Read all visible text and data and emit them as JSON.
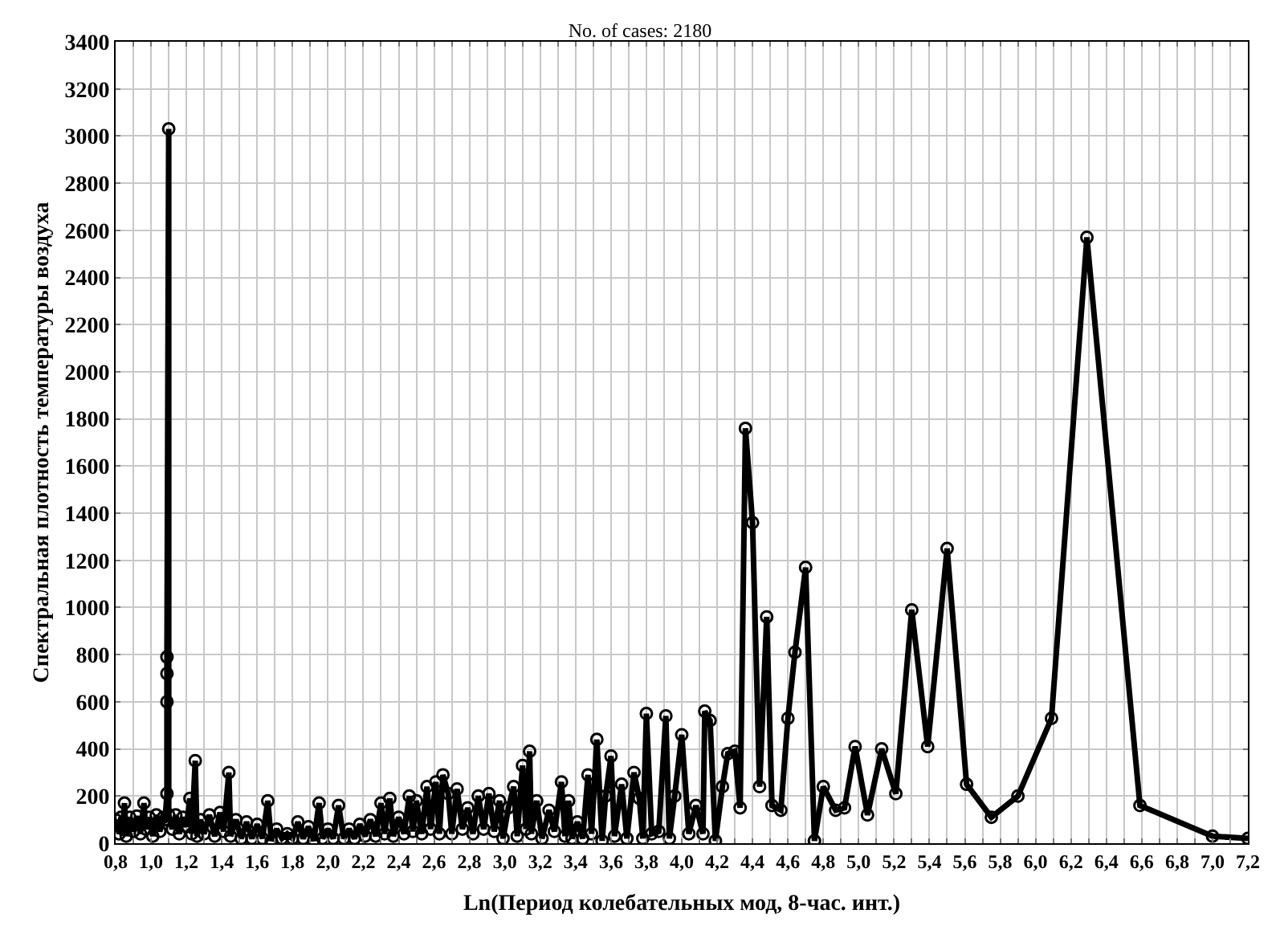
{
  "chart_data": {
    "type": "line",
    "title": "No. of cases: 2180",
    "xlabel": "Ln(Период колебательных мод, 8-час. инт.)",
    "ylabel": "Спектральная плотность температуры воздуха",
    "x": [
      0.8,
      0.82,
      0.83,
      0.84,
      0.85,
      0.86,
      0.88,
      0.9,
      0.92,
      0.94,
      0.96,
      0.97,
      0.99,
      1.01,
      1.03,
      1.05,
      1.07,
      1.08,
      1.09,
      1.09,
      1.09,
      1.09,
      1.1,
      1.1,
      1.12,
      1.14,
      1.16,
      1.18,
      1.2,
      1.22,
      1.23,
      1.25,
      1.26,
      1.28,
      1.3,
      1.33,
      1.36,
      1.39,
      1.41,
      1.44,
      1.45,
      1.48,
      1.51,
      1.54,
      1.57,
      1.6,
      1.63,
      1.66,
      1.68,
      1.71,
      1.74,
      1.77,
      1.8,
      1.83,
      1.86,
      1.89,
      1.92,
      1.95,
      1.97,
      2.0,
      2.03,
      2.06,
      2.09,
      2.12,
      2.15,
      2.18,
      2.21,
      2.24,
      2.27,
      2.3,
      2.32,
      2.35,
      2.37,
      2.4,
      2.43,
      2.46,
      2.48,
      2.5,
      2.53,
      2.56,
      2.58,
      2.61,
      2.63,
      2.65,
      2.68,
      2.7,
      2.73,
      2.76,
      2.79,
      2.82,
      2.85,
      2.88,
      2.91,
      2.94,
      2.97,
      2.99,
      3.02,
      3.05,
      3.07,
      3.1,
      3.12,
      3.14,
      3.15,
      3.18,
      3.21,
      3.25,
      3.28,
      3.32,
      3.34,
      3.36,
      3.38,
      3.41,
      3.44,
      3.47,
      3.49,
      3.52,
      3.55,
      3.57,
      3.6,
      3.62,
      3.66,
      3.69,
      3.73,
      3.76,
      3.78,
      3.8,
      3.83,
      3.87,
      3.91,
      3.93,
      3.96,
      4.0,
      4.04,
      4.08,
      4.12,
      4.13,
      4.16,
      4.19,
      4.23,
      4.26,
      4.3,
      4.33,
      4.36,
      4.4,
      4.44,
      4.48,
      4.51,
      4.56,
      4.6,
      4.64,
      4.7,
      4.75,
      4.8,
      4.87,
      4.92,
      4.98,
      5.05,
      5.13,
      5.21,
      5.3,
      5.39,
      5.5,
      5.61,
      5.75,
      5.9,
      6.09,
      6.29,
      6.59,
      7.0,
      7.2
    ],
    "series": [
      {
        "color": "#000000",
        "values": [
          100,
          40,
          110,
          60,
          170,
          30,
          110,
          50,
          115,
          40,
          170,
          60,
          110,
          30,
          120,
          50,
          110,
          100,
          210,
          600,
          720,
          790,
          3030,
          120,
          60,
          120,
          40,
          110,
          70,
          190,
          40,
          350,
          30,
          100,
          40,
          120,
          30,
          130,
          50,
          300,
          30,
          100,
          20,
          90,
          20,
          80,
          20,
          180,
          10,
          60,
          20,
          40,
          20,
          90,
          20,
          70,
          10,
          170,
          20,
          60,
          20,
          160,
          20,
          60,
          20,
          80,
          30,
          100,
          30,
          170,
          40,
          190,
          30,
          110,
          40,
          200,
          50,
          180,
          40,
          240,
          60,
          260,
          40,
          290,
          210,
          40,
          230,
          60,
          150,
          40,
          200,
          60,
          210,
          50,
          180,
          20,
          150,
          240,
          30,
          330,
          60,
          390,
          40,
          180,
          20,
          140,
          50,
          260,
          30,
          180,
          20,
          90,
          20,
          290,
          40,
          440,
          10,
          200,
          370,
          30,
          250,
          20,
          300,
          190,
          20,
          550,
          40,
          50,
          540,
          20,
          200,
          460,
          40,
          160,
          40,
          560,
          520,
          10,
          240,
          380,
          390,
          150,
          1760,
          1360,
          240,
          960,
          160,
          140,
          530,
          810,
          1170,
          10,
          240,
          140,
          150,
          410,
          120,
          400,
          210,
          990,
          410,
          1250,
          250,
          110,
          200,
          530,
          2570,
          160,
          30,
          20
        ]
      }
    ],
    "xlim": [
      0.8,
      7.2
    ],
    "ylim": [
      0,
      3400
    ],
    "xticks": [
      {
        "value": 0.8,
        "label": "0,8"
      },
      {
        "value": 0.9,
        "label": null
      },
      {
        "value": 1.0,
        "label": "1,0"
      },
      {
        "value": 1.1,
        "label": null
      },
      {
        "value": 1.2,
        "label": "1,2"
      },
      {
        "value": 1.3,
        "label": null
      },
      {
        "value": 1.4,
        "label": "1,4"
      },
      {
        "value": 1.5,
        "label": null
      },
      {
        "value": 1.6,
        "label": "1,6"
      },
      {
        "value": 1.7,
        "label": null
      },
      {
        "value": 1.8,
        "label": "1,8"
      },
      {
        "value": 1.9,
        "label": null
      },
      {
        "value": 2.0,
        "label": "2,0"
      },
      {
        "value": 2.1,
        "label": null
      },
      {
        "value": 2.2,
        "label": "2,2"
      },
      {
        "value": 2.3,
        "label": null
      },
      {
        "value": 2.4,
        "label": "2,4"
      },
      {
        "value": 2.5,
        "label": null
      },
      {
        "value": 2.6,
        "label": "2,6"
      },
      {
        "value": 2.7,
        "label": null
      },
      {
        "value": 2.8,
        "label": "2,8"
      },
      {
        "value": 2.9,
        "label": null
      },
      {
        "value": 3.0,
        "label": "3,0"
      },
      {
        "value": 3.1,
        "label": null
      },
      {
        "value": 3.2,
        "label": "3,2"
      },
      {
        "value": 3.3,
        "label": null
      },
      {
        "value": 3.4,
        "label": "3,4"
      },
      {
        "value": 3.5,
        "label": null
      },
      {
        "value": 3.6,
        "label": "3,6"
      },
      {
        "value": 3.7,
        "label": null
      },
      {
        "value": 3.8,
        "label": "3,8"
      },
      {
        "value": 3.9,
        "label": null
      },
      {
        "value": 4.0,
        "label": "4,0"
      },
      {
        "value": 4.1,
        "label": null
      },
      {
        "value": 4.2,
        "label": "4,2"
      },
      {
        "value": 4.3,
        "label": null
      },
      {
        "value": 4.4,
        "label": "4,4"
      },
      {
        "value": 4.5,
        "label": null
      },
      {
        "value": 4.6,
        "label": "4,6"
      },
      {
        "value": 4.7,
        "label": null
      },
      {
        "value": 4.8,
        "label": "4,8"
      },
      {
        "value": 4.9,
        "label": null
      },
      {
        "value": 5.0,
        "label": "5,0"
      },
      {
        "value": 5.1,
        "label": null
      },
      {
        "value": 5.2,
        "label": "5,2"
      },
      {
        "value": 5.3,
        "label": null
      },
      {
        "value": 5.4,
        "label": "5,4"
      },
      {
        "value": 5.5,
        "label": null
      },
      {
        "value": 5.6,
        "label": "5,6"
      },
      {
        "value": 5.7,
        "label": null
      },
      {
        "value": 5.8,
        "label": "5,8"
      },
      {
        "value": 5.9,
        "label": null
      },
      {
        "value": 6.0,
        "label": "6,0"
      },
      {
        "value": 6.1,
        "label": null
      },
      {
        "value": 6.2,
        "label": "6,2"
      },
      {
        "value": 6.3,
        "label": null
      },
      {
        "value": 6.4,
        "label": "6,4"
      },
      {
        "value": 6.5,
        "label": null
      },
      {
        "value": 6.6,
        "label": "6,6"
      },
      {
        "value": 6.7,
        "label": null
      },
      {
        "value": 6.8,
        "label": "6,8"
      },
      {
        "value": 6.9,
        "label": null
      },
      {
        "value": 7.0,
        "label": "7,0"
      },
      {
        "value": 7.1,
        "label": null
      },
      {
        "value": 7.2,
        "label": "7,2"
      }
    ],
    "yticks": [
      0,
      200,
      400,
      600,
      800,
      1000,
      1200,
      1400,
      1600,
      1800,
      2000,
      2200,
      2400,
      2600,
      2800,
      3000,
      3200,
      3400
    ],
    "grid": true,
    "marker": "circle",
    "line_style": "solid"
  }
}
